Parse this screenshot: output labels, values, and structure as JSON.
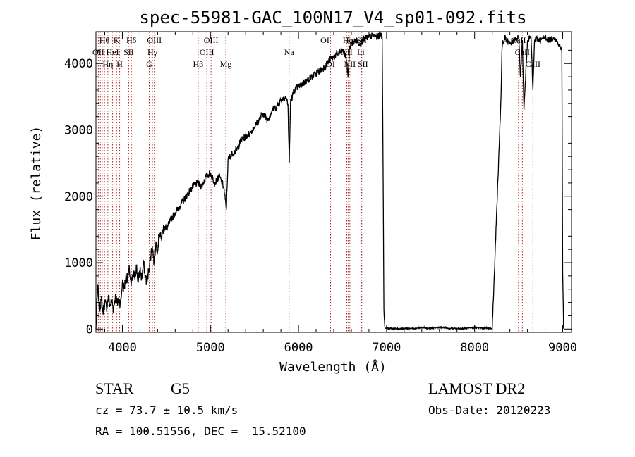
{
  "chart_data": {
    "type": "line",
    "title": "spec-55981-GAC_100N17_V4_sp01-092.fits",
    "xlabel": "Wavelength (Å)",
    "ylabel": "Flux (relative)",
    "xlim": [
      3700,
      9100
    ],
    "ylim": [
      -50,
      4480
    ],
    "xticks": [
      4000,
      5000,
      6000,
      7000,
      8000,
      9000
    ],
    "xtick_labels": [
      "4000",
      "5000",
      "6000",
      "7000",
      "8000",
      "9000"
    ],
    "yticks": [
      0,
      1000,
      2000,
      3000,
      4000
    ],
    "ytick_labels": [
      "0",
      "1000",
      "2000",
      "3000",
      "4000"
    ],
    "grid": false,
    "legend": "none",
    "series": [
      {
        "color": "#000000",
        "x": [
          3700,
          3720,
          3740,
          3760,
          3780,
          3800,
          3820,
          3840,
          3860,
          3880,
          3900,
          3920,
          3940,
          3960,
          3980,
          4000,
          4020,
          4040,
          4060,
          4080,
          4100,
          4120,
          4140,
          4160,
          4180,
          4200,
          4220,
          4240,
          4260,
          4280,
          4300,
          4320,
          4340,
          4360,
          4380,
          4400,
          4420,
          4440,
          4460,
          4480,
          4500,
          4550,
          4600,
          4650,
          4700,
          4750,
          4800,
          4850,
          4900,
          4950,
          5000,
          5050,
          5100,
          5150,
          5180,
          5200,
          5250,
          5300,
          5350,
          5400,
          5450,
          5500,
          5550,
          5600,
          5650,
          5700,
          5750,
          5800,
          5850,
          5880,
          5895,
          5910,
          5930,
          5950,
          6000,
          6050,
          6100,
          6150,
          6200,
          6250,
          6300,
          6350,
          6400,
          6450,
          6500,
          6540,
          6563,
          6580,
          6600,
          6650,
          6700,
          6750,
          6800,
          6850,
          6900,
          6930,
          6950,
          6960,
          6970,
          6980,
          6990,
          7000,
          7100,
          7200,
          7300,
          7400,
          7500,
          7600,
          7700,
          7800,
          7900,
          8000,
          8100,
          8200,
          8300,
          8310,
          8320,
          8330,
          8340,
          8360,
          8400,
          8450,
          8500,
          8520,
          8542,
          8560,
          8600,
          8640,
          8662,
          8680,
          8700,
          8750,
          8800,
          8850,
          8900,
          8950,
          8990,
          9000,
          9010
        ],
        "y": [
          0,
          650,
          300,
          450,
          250,
          400,
          320,
          480,
          350,
          420,
          300,
          500,
          380,
          450,
          380,
          700,
          600,
          800,
          750,
          900,
          650,
          820,
          780,
          950,
          700,
          900,
          760,
          1000,
          800,
          700,
          900,
          1100,
          1250,
          1000,
          1300,
          1200,
          1450,
          1350,
          1500,
          1550,
          1500,
          1650,
          1750,
          1850,
          1950,
          2050,
          2150,
          2200,
          2150,
          2300,
          2350,
          2200,
          2300,
          2150,
          1800,
          2550,
          2650,
          2700,
          2850,
          2900,
          2950,
          3050,
          3150,
          3250,
          3150,
          3300,
          3350,
          3450,
          3500,
          3400,
          2500,
          3450,
          3500,
          3600,
          3650,
          3700,
          3750,
          3800,
          3850,
          3900,
          3950,
          4050,
          4100,
          4150,
          4200,
          4100,
          3800,
          4250,
          4300,
          4350,
          4300,
          4380,
          4400,
          4420,
          4400,
          4450,
          4400,
          2500,
          300,
          30,
          10,
          15,
          5,
          8,
          10,
          20,
          10,
          30,
          10,
          5,
          10,
          20,
          15,
          10,
          3500,
          4200,
          4350,
          4300,
          4400,
          4350,
          4300,
          4350,
          4400,
          3800,
          4350,
          3300,
          4350,
          4400,
          3600,
          4350,
          4380,
          4350,
          4400,
          4350,
          4400,
          4300,
          4200,
          850,
          5
        ]
      }
    ],
    "annotations": [
      {
        "label": "Hθ",
        "x": 3797,
        "row": 1
      },
      {
        "label": "K",
        "x": 3934,
        "row": 1
      },
      {
        "label": "Hδ",
        "x": 4102,
        "row": 1
      },
      {
        "label": "OIII",
        "x": 4363,
        "row": 1
      },
      {
        "label": "OIII",
        "x": 5007,
        "row": 1
      },
      {
        "label": "OI",
        "x": 6300,
        "row": 1
      },
      {
        "label": "Hα",
        "x": 6563,
        "row": 1
      },
      {
        "label": "SII",
        "x": 6717,
        "row": 1
      },
      {
        "label": "CaII",
        "x": 8498,
        "row": 1
      },
      {
        "label": "OII",
        "x": 3727,
        "row": 2
      },
      {
        "label": "HeI",
        "x": 3889,
        "row": 2
      },
      {
        "label": "SII",
        "x": 4072,
        "row": 2
      },
      {
        "label": "Hγ",
        "x": 4341,
        "row": 2
      },
      {
        "label": "OIII",
        "x": 4959,
        "row": 2
      },
      {
        "label": "Na",
        "x": 5893,
        "row": 2
      },
      {
        "label": "NII",
        "x": 6548,
        "row": 2
      },
      {
        "label": "Li",
        "x": 6708,
        "row": 2
      },
      {
        "label": "CaII",
        "x": 8542,
        "row": 2
      },
      {
        "label": "Hη",
        "x": 3835,
        "row": 3
      },
      {
        "label": "H",
        "x": 3969,
        "row": 3
      },
      {
        "label": "G",
        "x": 4305,
        "row": 3
      },
      {
        "label": "Hβ",
        "x": 4861,
        "row": 3
      },
      {
        "label": "Mg",
        "x": 5175,
        "row": 3
      },
      {
        "label": "OI",
        "x": 6364,
        "row": 3
      },
      {
        "label": "NII",
        "x": 6583,
        "row": 3
      },
      {
        "label": "SII",
        "x": 6731,
        "row": 3
      },
      {
        "label": "CaII",
        "x": 8662,
        "row": 3
      }
    ],
    "line_markers": [
      3727,
      3750,
      3771,
      3797,
      3835,
      3889,
      3934,
      3969,
      4072,
      4102,
      4305,
      4341,
      4363,
      4861,
      4959,
      5007,
      5175,
      5893,
      6300,
      6364,
      6548,
      6563,
      6583,
      6708,
      6717,
      6731,
      8498,
      8542,
      8662
    ]
  },
  "footer": {
    "object_class": "STAR",
    "subclass": "G5",
    "survey": "LAMOST DR2",
    "redshift": "cz = 73.7 ± 10.5 km/s",
    "obs_date": "Obs-Date: 20120223",
    "coords": "RA = 100.51556, DEC =  15.52100"
  }
}
